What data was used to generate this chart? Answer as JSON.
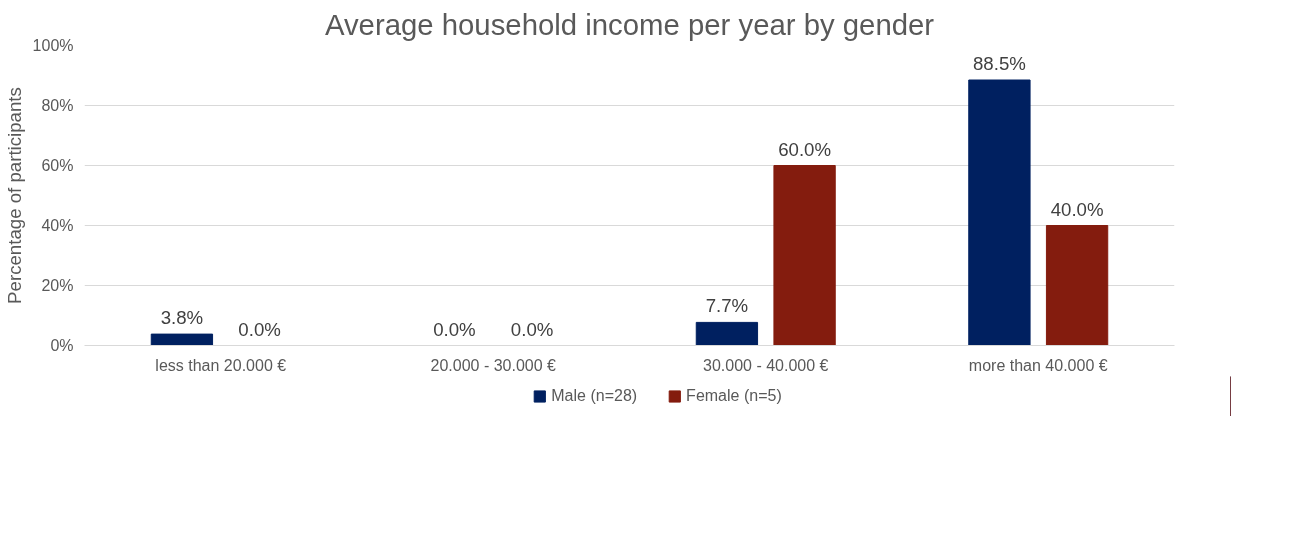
{
  "chart_data": {
    "type": "bar",
    "title": "Average household income per year by gender",
    "ylabel": "Percentage of participants",
    "categories": [
      "less than 20.000 €",
      "20.000 - 30.000 €",
      "30.000 - 40.000 €",
      "more than 40.000 €"
    ],
    "series": [
      {
        "name": "Male (n=28)",
        "color": "#002060",
        "values": [
          3.8,
          0.0,
          7.7,
          88.5
        ],
        "value_labels": [
          "3.8%",
          "0.0%",
          "7.7%",
          "88.5%"
        ]
      },
      {
        "name": "Female (n=5)",
        "color": "#841c0e",
        "values": [
          0.0,
          0.0,
          60.0,
          40.0
        ],
        "value_labels": [
          "0.0%",
          "0.0%",
          "60.0%",
          "40.0%"
        ]
      }
    ],
    "ylim": [
      0,
      100
    ],
    "yticks": [
      {
        "value": 0,
        "label": "0%"
      },
      {
        "value": 20,
        "label": "20%"
      },
      {
        "value": 40,
        "label": "40%"
      },
      {
        "value": 60,
        "label": "60%"
      },
      {
        "value": 80,
        "label": "80%"
      },
      {
        "value": 100,
        "label": "100%"
      }
    ],
    "grid": "y",
    "legend": "bottom"
  }
}
